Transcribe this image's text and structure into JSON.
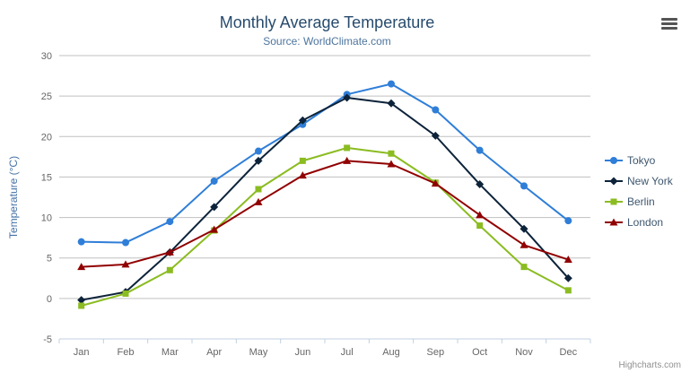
{
  "chart": {
    "credits": "Highcharts.com",
    "icons": {
      "export_menu": "hamburger"
    }
  },
  "chart_data": {
    "type": "line",
    "title": "Monthly Average Temperature",
    "subtitle": "Source: WorldClimate.com",
    "categories": [
      "Jan",
      "Feb",
      "Mar",
      "Apr",
      "May",
      "Jun",
      "Jul",
      "Aug",
      "Sep",
      "Oct",
      "Nov",
      "Dec"
    ],
    "xlabel": "",
    "ylabel": "Temperature (°C)",
    "ylim": [
      -5,
      30
    ],
    "ytick_step": 5,
    "grid": true,
    "legend_position": "right",
    "series": [
      {
        "name": "Tokyo",
        "color": "#2f7ed8",
        "marker": "circle",
        "values": [
          7.0,
          6.9,
          9.5,
          14.5,
          18.2,
          21.5,
          25.2,
          26.5,
          23.3,
          18.3,
          13.9,
          9.6
        ]
      },
      {
        "name": "New York",
        "color": "#0d233a",
        "marker": "diamond",
        "values": [
          -0.2,
          0.8,
          5.7,
          11.3,
          17.0,
          22.0,
          24.8,
          24.1,
          20.1,
          14.1,
          8.6,
          2.5
        ]
      },
      {
        "name": "Berlin",
        "color": "#8bbc21",
        "marker": "square",
        "values": [
          -0.9,
          0.6,
          3.5,
          8.4,
          13.5,
          17.0,
          18.6,
          17.9,
          14.3,
          9.0,
          3.9,
          1.0
        ]
      },
      {
        "name": "London",
        "color": "#910000",
        "marker": "triangle",
        "values": [
          3.9,
          4.2,
          5.7,
          8.5,
          11.9,
          15.2,
          17.0,
          16.6,
          14.2,
          10.3,
          6.6,
          4.8
        ]
      }
    ]
  }
}
